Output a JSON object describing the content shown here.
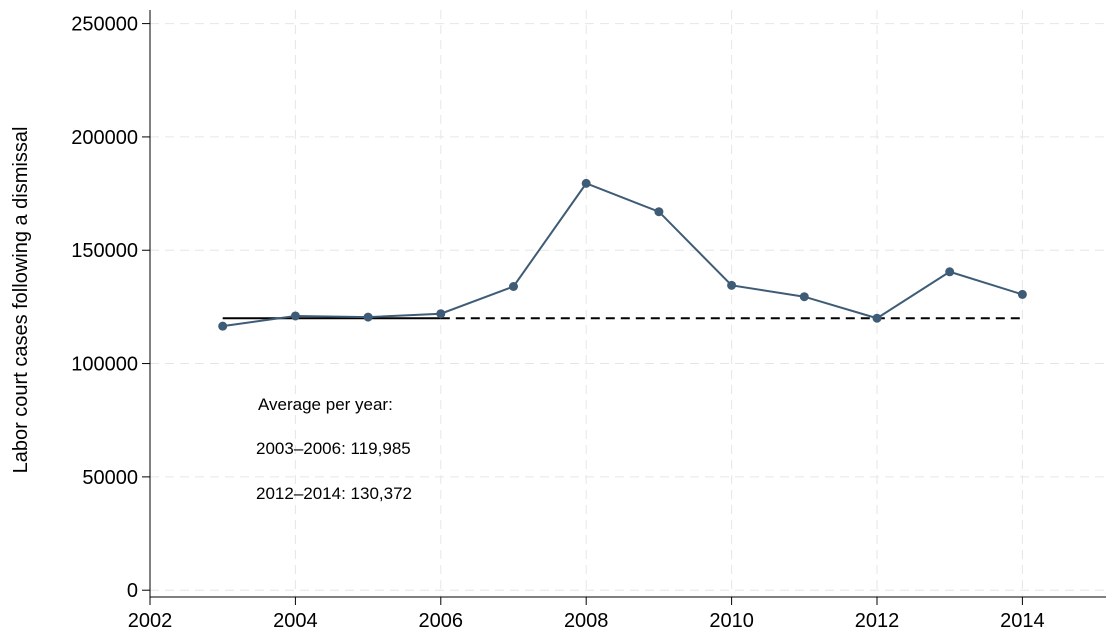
{
  "chart_data": {
    "type": "line",
    "ylabel": "Labor court cases following a dismissal",
    "xlabel": "",
    "xlim": [
      2002,
      2015.15
    ],
    "ylim": [
      -3000,
      256000
    ],
    "xticks": [
      2002,
      2004,
      2006,
      2008,
      2010,
      2012,
      2014
    ],
    "xtick_labels": [
      "2002",
      "2004",
      "2006",
      "2008",
      "2010",
      "2012",
      "2014"
    ],
    "yticks": [
      0,
      50000,
      100000,
      150000,
      200000,
      250000
    ],
    "ytick_labels": [
      "0",
      "50000",
      "100000",
      "150000",
      "200000",
      "250000"
    ],
    "grid": true,
    "legend": "none",
    "series": [
      {
        "x": [
          2003,
          2004,
          2005,
          2006,
          2007,
          2008,
          2009,
          2010,
          2011,
          2012,
          2013,
          2014
        ],
        "values": [
          116500,
          121000,
          120500,
          122000,
          134000,
          179500,
          167000,
          134500,
          129500,
          120000,
          140500,
          130500
        ],
        "color": "#3e5c76",
        "style": "line-markers"
      }
    ],
    "reference_lines": [
      {
        "x_start": 2003,
        "x_end": 2006,
        "y": 119985,
        "style": "solid",
        "color": "#000000"
      },
      {
        "x_start": 2006,
        "x_end": 2014,
        "y": 119985,
        "style": "dashed",
        "color": "#000000"
      }
    ],
    "annotations": {
      "heading": "Average per year:",
      "line1": "2003–2006: 119,985",
      "line2": "2012–2014: 130,372"
    }
  }
}
